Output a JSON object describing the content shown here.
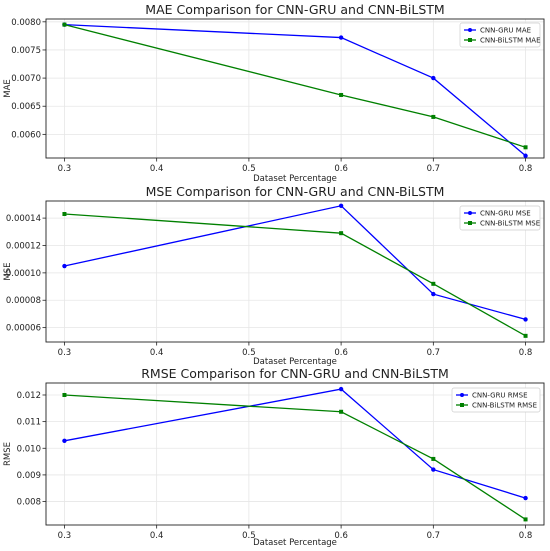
{
  "chart_data": [
    {
      "type": "line",
      "title": "MAE Comparison for CNN-GRU and CNN-BiLSTM",
      "xlabel": "Dataset Percentage",
      "ylabel": "MAE",
      "x": [
        0.3,
        0.6,
        0.7,
        0.8
      ],
      "xticks": [
        "0.3",
        "0.4",
        "0.5",
        "0.6",
        "0.7",
        "0.8"
      ],
      "yticks": [
        "0.0060",
        "0.0065",
        "0.0070",
        "0.0075",
        "0.0080"
      ],
      "xlim": [
        0.28,
        0.82
      ],
      "ylim": [
        0.00558,
        0.00805
      ],
      "grid": true,
      "legend": "top-right",
      "series": [
        {
          "name": "CNN-GRU MAE",
          "color": "#0000ff",
          "marker": "circle",
          "values": [
            0.00795,
            0.00772,
            0.007,
            0.00562
          ]
        },
        {
          "name": "CNN-BiLSTM MAE",
          "color": "#008000",
          "marker": "square",
          "values": [
            0.00795,
            0.0067,
            0.00631,
            0.00577
          ]
        }
      ]
    },
    {
      "type": "line",
      "title": "MSE Comparison for CNN-GRU and CNN-BiLSTM",
      "xlabel": "Dataset Percentage",
      "ylabel": "MSE",
      "x": [
        0.3,
        0.6,
        0.7,
        0.8
      ],
      "xticks": [
        "0.3",
        "0.4",
        "0.5",
        "0.6",
        "0.7",
        "0.8"
      ],
      "yticks": [
        "0.00006",
        "0.00008",
        "0.00010",
        "0.00012",
        "0.00014"
      ],
      "xlim": [
        0.28,
        0.82
      ],
      "ylim": [
        4.95e-05,
        0.0001525
      ],
      "grid": true,
      "legend": "top-right",
      "series": [
        {
          "name": "CNN-GRU MSE",
          "color": "#0000ff",
          "marker": "circle",
          "values": [
            0.000105,
            0.000149,
            8.45e-05,
            6.6e-05
          ]
        },
        {
          "name": "CNN-BiLSTM MSE",
          "color": "#008000",
          "marker": "square",
          "values": [
            0.000143,
            0.000129,
            9.2e-05,
            5.4e-05
          ]
        }
      ]
    },
    {
      "type": "line",
      "title": "RMSE Comparison for CNN-GRU and CNN-BiLSTM",
      "xlabel": "Dataset Percentage",
      "ylabel": "RMSE",
      "x": [
        0.3,
        0.6,
        0.7,
        0.8
      ],
      "xticks": [
        "0.3",
        "0.4",
        "0.5",
        "0.6",
        "0.7",
        "0.8"
      ],
      "yticks": [
        "0.008",
        "0.009",
        "0.010",
        "0.011",
        "0.012"
      ],
      "xlim": [
        0.28,
        0.82
      ],
      "ylim": [
        0.00712,
        0.01245
      ],
      "grid": true,
      "legend": "top-right",
      "series": [
        {
          "name": "CNN-GRU RMSE",
          "color": "#0000ff",
          "marker": "circle",
          "values": [
            0.01028,
            0.01222,
            0.0092,
            0.00813
          ]
        },
        {
          "name": "CNN-BiLSTM RMSE",
          "color": "#008000",
          "marker": "square",
          "values": [
            0.012,
            0.01137,
            0.0096,
            0.00733
          ]
        }
      ]
    }
  ]
}
